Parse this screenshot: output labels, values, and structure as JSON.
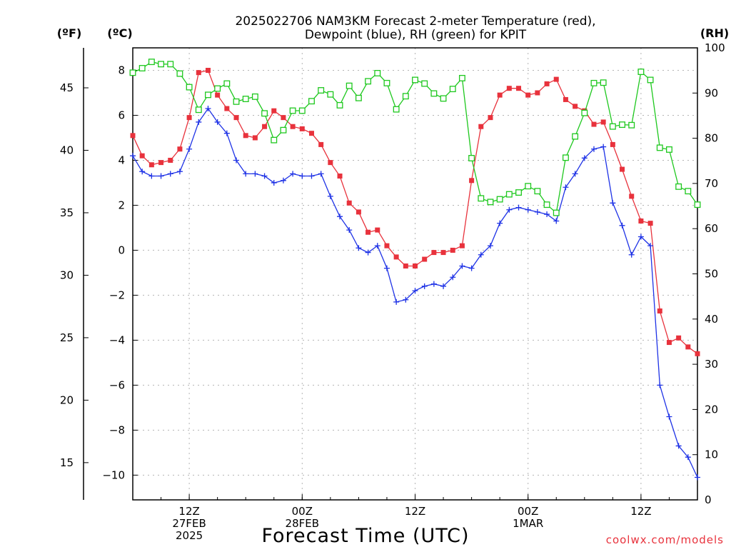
{
  "chart_data": {
    "type": "line",
    "title_line1": "2025022706 NAM3KM Forecast 2-meter Temperature (red),",
    "title_line2": "Dewpoint (blue), RH (green) for KPIT",
    "xlabel": "Forecast Time (UTC)",
    "credit": "coolwx.com/models",
    "grid": true,
    "left_unit_f": "(ºF)",
    "left_unit_c": "(ºC)",
    "right_unit": "(RH)",
    "x_range_hours": [
      7,
      67
    ],
    "celsius_range": [
      -11.1,
      9
    ],
    "rh_range": [
      0,
      100
    ],
    "fahrenheit_ticks": [
      "15",
      "20",
      "25",
      "30",
      "35",
      "40",
      "45"
    ],
    "celsius_ticks": [
      "−10",
      "−8",
      "−6",
      "−4",
      "−2",
      "0",
      "2",
      "4",
      "6",
      "8"
    ],
    "rh_ticks": [
      "0",
      "10",
      "20",
      "30",
      "40",
      "50",
      "60",
      "70",
      "80",
      "90",
      "100"
    ],
    "x_ticks": [
      {
        "hour": 13,
        "lines": [
          "12Z",
          "27FEB",
          "2025"
        ]
      },
      {
        "hour": 25,
        "lines": [
          "00Z",
          "28FEB"
        ]
      },
      {
        "hour": 37,
        "lines": [
          "12Z"
        ]
      },
      {
        "hour": 49,
        "lines": [
          "00Z",
          "1MAR"
        ]
      },
      {
        "hour": 61,
        "lines": [
          "12Z"
        ]
      }
    ],
    "series": [
      {
        "name": "Temperature",
        "color": "#e8323c",
        "marker": "filled-square",
        "x": [
          7,
          8,
          9,
          10,
          11,
          12,
          13,
          14,
          15,
          16,
          17,
          18,
          19,
          20,
          21,
          22,
          23,
          24,
          25,
          26,
          27,
          28,
          29,
          30,
          31,
          32,
          33,
          34,
          35,
          36,
          37,
          38,
          39,
          40,
          41,
          42,
          43,
          44,
          45,
          46,
          47,
          48,
          49,
          50,
          51,
          52,
          53,
          54,
          55,
          56,
          57,
          58,
          59,
          60,
          61,
          62,
          63,
          64,
          65,
          66,
          67
        ],
        "values": [
          5.1,
          4.2,
          3.8,
          3.9,
          4.0,
          4.5,
          5.9,
          7.9,
          8.0,
          6.9,
          6.3,
          5.9,
          5.1,
          5.0,
          5.5,
          6.2,
          5.9,
          5.5,
          5.4,
          5.2,
          4.7,
          3.9,
          3.3,
          2.1,
          1.7,
          0.8,
          0.9,
          0.2,
          -0.3,
          -0.7,
          -0.7,
          -0.4,
          -0.1,
          -0.1,
          0.0,
          0.2,
          3.1,
          5.5,
          5.9,
          6.9,
          7.2,
          7.2,
          6.9,
          7.0,
          7.4,
          7.6,
          6.7,
          6.4,
          6.2,
          5.6,
          5.7,
          4.7,
          3.6,
          2.4,
          1.3,
          1.2,
          -2.7,
          -4.1,
          -3.9,
          -4.3,
          -4.6
        ]
      },
      {
        "name": "Dewpoint",
        "color": "#1e32e6",
        "marker": "plus",
        "x": [
          7,
          8,
          9,
          10,
          11,
          12,
          13,
          14,
          15,
          16,
          17,
          18,
          19,
          20,
          21,
          22,
          23,
          24,
          25,
          26,
          27,
          28,
          29,
          30,
          31,
          32,
          33,
          34,
          35,
          36,
          37,
          38,
          39,
          40,
          41,
          42,
          43,
          44,
          45,
          46,
          47,
          48,
          49,
          50,
          51,
          52,
          53,
          54,
          55,
          56,
          57,
          58,
          59,
          60,
          61,
          62,
          63,
          64,
          65,
          66,
          67
        ],
        "values": [
          4.2,
          3.5,
          3.3,
          3.3,
          3.4,
          3.5,
          4.5,
          5.7,
          6.3,
          5.7,
          5.2,
          4.0,
          3.4,
          3.4,
          3.3,
          3.0,
          3.1,
          3.4,
          3.3,
          3.3,
          3.4,
          2.4,
          1.5,
          0.9,
          0.1,
          -0.1,
          0.2,
          -0.8,
          -2.3,
          -2.2,
          -1.8,
          -1.6,
          -1.5,
          -1.6,
          -1.2,
          -0.7,
          -0.8,
          -0.2,
          0.2,
          1.2,
          1.8,
          1.9,
          1.8,
          1.7,
          1.6,
          1.3,
          2.8,
          3.4,
          4.1,
          4.5,
          4.6,
          2.1,
          1.1,
          -0.2,
          0.6,
          0.2,
          -6.0,
          -7.4,
          -8.7,
          -9.2,
          -10.1
        ]
      },
      {
        "name": "RH",
        "color": "#1ec81e",
        "marker": "open-square",
        "x": [
          7,
          8,
          9,
          10,
          11,
          12,
          13,
          14,
          15,
          16,
          17,
          18,
          19,
          20,
          21,
          22,
          23,
          24,
          25,
          26,
          27,
          28,
          29,
          30,
          31,
          32,
          33,
          34,
          35,
          36,
          37,
          38,
          39,
          40,
          41,
          42,
          43,
          44,
          45,
          46,
          47,
          48,
          49,
          50,
          51,
          52,
          53,
          54,
          55,
          56,
          57,
          58,
          59,
          60,
          61,
          62,
          63,
          64,
          65,
          66,
          67
        ],
        "values": [
          94.5,
          95.5,
          96.9,
          96.4,
          96.4,
          94.3,
          91.3,
          86.3,
          89.6,
          91.0,
          92.1,
          88.1,
          88.7,
          89.2,
          85.5,
          79.6,
          81.8,
          86.1,
          86.1,
          88.2,
          90.6,
          89.7,
          87.3,
          91.6,
          88.9,
          92.6,
          94.4,
          92.2,
          86.4,
          89.3,
          92.9,
          92.1,
          89.9,
          88.8,
          90.9,
          93.3,
          75.6,
          66.7,
          65.9,
          66.5,
          67.6,
          68.0,
          69.4,
          68.3,
          65.3,
          63.5,
          75.7,
          80.4,
          85.6,
          92.2,
          92.3,
          82.6,
          83.0,
          82.9,
          94.7,
          92.9,
          77.9,
          77.5,
          69.3,
          68.3,
          65.3
        ]
      }
    ]
  }
}
